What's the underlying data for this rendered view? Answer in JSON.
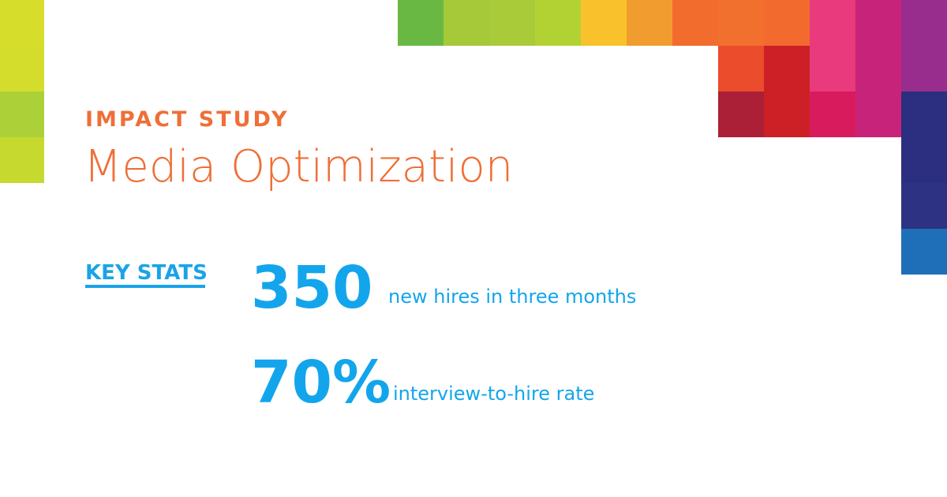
{
  "header": {
    "eyebrow": "IMPACT STUDY",
    "title": "Media Optimization"
  },
  "stats": {
    "label": "KEY STATS",
    "items": [
      {
        "value": "350",
        "text": "new hires in three months"
      },
      {
        "value": "70%",
        "text": "interview-to-hire rate"
      }
    ]
  }
}
